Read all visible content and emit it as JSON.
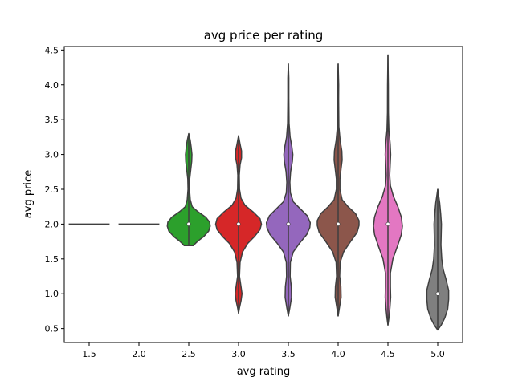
{
  "chart_data": {
    "type": "violin",
    "title": "avg price per rating",
    "xlabel": "avg rating",
    "ylabel": "avg price",
    "categories": [
      "1.5",
      "2.0",
      "2.5",
      "3.0",
      "3.5",
      "4.0",
      "4.5",
      "5.0"
    ],
    "ylim": [
      0.3,
      4.55
    ],
    "yticks": [
      "0.5",
      "1.0",
      "1.5",
      "2.0",
      "2.5",
      "3.0",
      "3.5",
      "4.0",
      "4.5"
    ],
    "grid": false,
    "legend": "none",
    "violins": [
      {
        "category": "1.5",
        "color": "#1f77b4",
        "median": 2.0,
        "ymin": 2.0,
        "ymax": 2.0,
        "profile": []
      },
      {
        "category": "2.0",
        "color": "#ff7f0e",
        "median": 2.0,
        "ymin": 2.0,
        "ymax": 2.0,
        "profile": []
      },
      {
        "category": "2.5",
        "color": "#2ca02c",
        "median": 2.0,
        "ymin": 1.69,
        "ymax": 3.3,
        "profile": [
          [
            1.69,
            0.09
          ],
          [
            1.72,
            0.13
          ],
          [
            1.76,
            0.19
          ],
          [
            1.82,
            0.3
          ],
          [
            1.9,
            0.4
          ],
          [
            1.97,
            0.43
          ],
          [
            2.03,
            0.42
          ],
          [
            2.1,
            0.34
          ],
          [
            2.18,
            0.18
          ],
          [
            2.25,
            0.07
          ],
          [
            2.35,
            0.03
          ],
          [
            2.5,
            0.015
          ],
          [
            2.65,
            0.02
          ],
          [
            2.78,
            0.04
          ],
          [
            2.9,
            0.06
          ],
          [
            3.0,
            0.065
          ],
          [
            3.1,
            0.05
          ],
          [
            3.2,
            0.03
          ],
          [
            3.3,
            0.0
          ]
        ]
      },
      {
        "category": "3.0",
        "color": "#d62728",
        "median": 2.0,
        "ymin": 0.72,
        "ymax": 3.27,
        "profile": [
          [
            0.72,
            0.0
          ],
          [
            0.8,
            0.02
          ],
          [
            0.9,
            0.05
          ],
          [
            1.0,
            0.07
          ],
          [
            1.1,
            0.05
          ],
          [
            1.25,
            0.02
          ],
          [
            1.45,
            0.03
          ],
          [
            1.6,
            0.08
          ],
          [
            1.72,
            0.18
          ],
          [
            1.82,
            0.32
          ],
          [
            1.92,
            0.43
          ],
          [
            2.0,
            0.46
          ],
          [
            2.08,
            0.43
          ],
          [
            2.17,
            0.3
          ],
          [
            2.27,
            0.13
          ],
          [
            2.37,
            0.05
          ],
          [
            2.5,
            0.02
          ],
          [
            2.7,
            0.015
          ],
          [
            2.85,
            0.03
          ],
          [
            2.95,
            0.06
          ],
          [
            3.05,
            0.06
          ],
          [
            3.15,
            0.03
          ],
          [
            3.27,
            0.0
          ]
        ]
      },
      {
        "category": "3.5",
        "color": "#9467bd",
        "median": 2.0,
        "ymin": 0.68,
        "ymax": 4.3,
        "profile": [
          [
            0.68,
            0.0
          ],
          [
            0.8,
            0.03
          ],
          [
            0.95,
            0.065
          ],
          [
            1.1,
            0.06
          ],
          [
            1.25,
            0.035
          ],
          [
            1.45,
            0.04
          ],
          [
            1.6,
            0.1
          ],
          [
            1.72,
            0.22
          ],
          [
            1.85,
            0.37
          ],
          [
            1.95,
            0.43
          ],
          [
            2.02,
            0.44
          ],
          [
            2.12,
            0.38
          ],
          [
            2.22,
            0.24
          ],
          [
            2.32,
            0.1
          ],
          [
            2.45,
            0.04
          ],
          [
            2.6,
            0.03
          ],
          [
            2.75,
            0.045
          ],
          [
            2.9,
            0.08
          ],
          [
            3.0,
            0.09
          ],
          [
            3.12,
            0.07
          ],
          [
            3.25,
            0.035
          ],
          [
            3.45,
            0.015
          ],
          [
            3.8,
            0.01
          ],
          [
            4.1,
            0.01
          ],
          [
            4.3,
            0.0
          ]
        ]
      },
      {
        "category": "4.0",
        "color": "#8c564b",
        "median": 2.0,
        "ymin": 0.68,
        "ymax": 4.3,
        "profile": [
          [
            0.68,
            0.0
          ],
          [
            0.8,
            0.025
          ],
          [
            0.95,
            0.06
          ],
          [
            1.1,
            0.055
          ],
          [
            1.25,
            0.03
          ],
          [
            1.45,
            0.04
          ],
          [
            1.6,
            0.11
          ],
          [
            1.75,
            0.25
          ],
          [
            1.88,
            0.38
          ],
          [
            1.98,
            0.42
          ],
          [
            2.05,
            0.42
          ],
          [
            2.15,
            0.35
          ],
          [
            2.25,
            0.2
          ],
          [
            2.35,
            0.08
          ],
          [
            2.5,
            0.035
          ],
          [
            2.65,
            0.035
          ],
          [
            2.8,
            0.06
          ],
          [
            2.92,
            0.08
          ],
          [
            3.05,
            0.075
          ],
          [
            3.2,
            0.04
          ],
          [
            3.4,
            0.015
          ],
          [
            3.8,
            0.01
          ],
          [
            4.0,
            0.012
          ],
          [
            4.3,
            0.0
          ]
        ]
      },
      {
        "category": "4.5",
        "color": "#e377c2",
        "median": 2.0,
        "ymin": 0.55,
        "ymax": 4.43,
        "profile": [
          [
            0.55,
            0.0
          ],
          [
            0.65,
            0.02
          ],
          [
            0.8,
            0.04
          ],
          [
            0.95,
            0.055
          ],
          [
            1.1,
            0.05
          ],
          [
            1.3,
            0.05
          ],
          [
            1.5,
            0.1
          ],
          [
            1.7,
            0.2
          ],
          [
            1.85,
            0.27
          ],
          [
            1.97,
            0.29
          ],
          [
            2.1,
            0.27
          ],
          [
            2.25,
            0.2
          ],
          [
            2.4,
            0.11
          ],
          [
            2.55,
            0.05
          ],
          [
            2.7,
            0.035
          ],
          [
            2.85,
            0.045
          ],
          [
            3.0,
            0.055
          ],
          [
            3.15,
            0.045
          ],
          [
            3.35,
            0.02
          ],
          [
            3.6,
            0.01
          ],
          [
            4.0,
            0.008
          ],
          [
            4.43,
            0.0
          ]
        ]
      },
      {
        "category": "5.0",
        "color": "#7f7f7f",
        "median": 1.0,
        "ymin": 0.48,
        "ymax": 2.5,
        "profile": [
          [
            0.48,
            0.0
          ],
          [
            0.55,
            0.07
          ],
          [
            0.65,
            0.14
          ],
          [
            0.78,
            0.2
          ],
          [
            0.92,
            0.22
          ],
          [
            1.05,
            0.22
          ],
          [
            1.2,
            0.17
          ],
          [
            1.35,
            0.11
          ],
          [
            1.5,
            0.08
          ],
          [
            1.7,
            0.065
          ],
          [
            1.85,
            0.07
          ],
          [
            2.0,
            0.075
          ],
          [
            2.15,
            0.06
          ],
          [
            2.3,
            0.04
          ],
          [
            2.5,
            0.0
          ]
        ]
      }
    ]
  }
}
